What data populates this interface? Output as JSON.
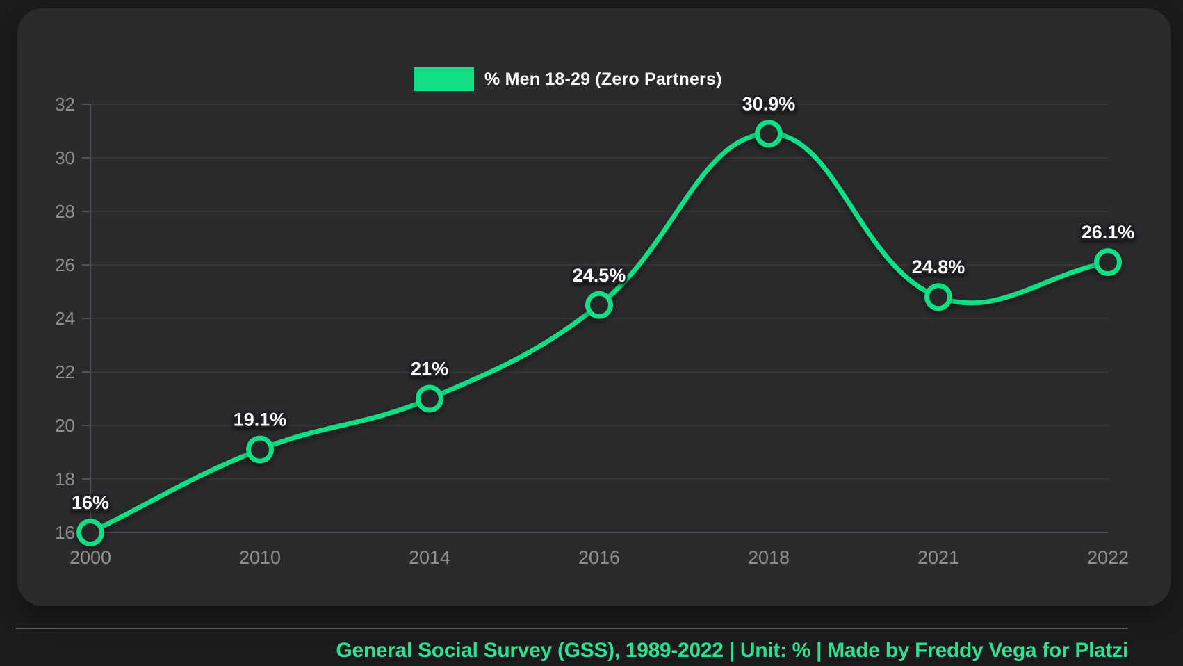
{
  "colors": {
    "accent": "#12df85",
    "footer_green": "#2ee08f",
    "page_bg": "#1c1c1e",
    "panel_bg": "#2a2b2d",
    "grid": "#393a3c",
    "baseline": "#525356",
    "axis": "#525356",
    "tick_label": "#8f8f91",
    "point_fill": "#242628",
    "label_fill": "#ffffff",
    "label_stroke": "#202124"
  },
  "legend": {
    "label": "% Men 18-29 (Zero Partners)"
  },
  "footer": {
    "text": "General Social Survey (GSS), 1989-2022 | Unit: % | Made by Freddy Vega for Platzi"
  },
  "chart_data": {
    "type": "line",
    "x": [
      "2000",
      "2010",
      "2014",
      "2016",
      "2018",
      "2021",
      "2022"
    ],
    "series": [
      {
        "name": "% Men 18-29 (Zero Partners)",
        "values": [
          16,
          19.1,
          21,
          24.5,
          30.9,
          24.8,
          26.1
        ]
      }
    ],
    "point_labels": [
      "16%",
      "19.1%",
      "21%",
      "24.5%",
      "30.9%",
      "24.8%",
      "26.1%"
    ],
    "yticks": [
      "16",
      "18",
      "20",
      "22",
      "24",
      "26",
      "28",
      "30",
      "32"
    ],
    "ylim": [
      16,
      32
    ],
    "ytick_step": 2,
    "grid": true,
    "legend_position": "top",
    "line_tension": 0.4
  }
}
